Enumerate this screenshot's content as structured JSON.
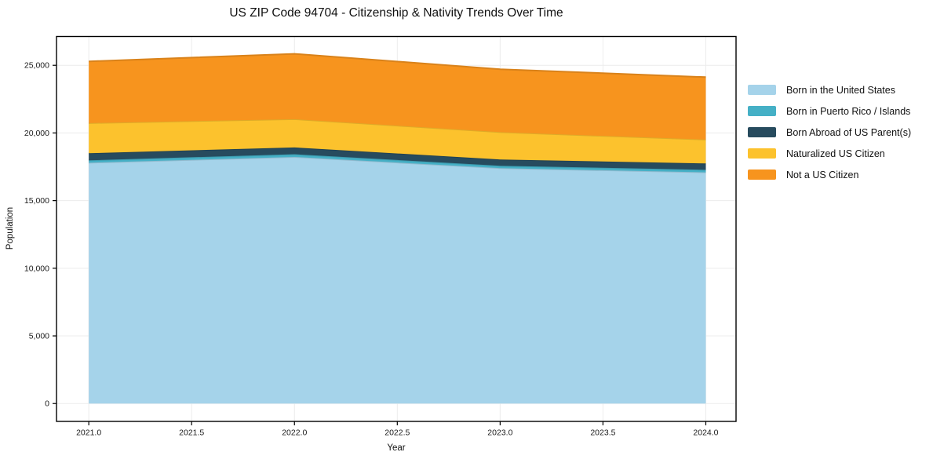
{
  "title": "US ZIP Code 94704 - Citizenship & Nativity Trends Over Time",
  "chart_data": {
    "type": "area",
    "stacked": true,
    "title": "US ZIP Code 94704 - Citizenship & Nativity Trends Over Time",
    "xlabel": "Year",
    "ylabel": "Population",
    "x": [
      2021,
      2022,
      2023,
      2024
    ],
    "series": [
      {
        "name": "Born in the United States",
        "color": "#a5d3ea",
        "values": [
          17800,
          18230,
          17400,
          17090
        ]
      },
      {
        "name": "Born in Puerto Rico / Islands",
        "color": "#45b0c6",
        "values": [
          180,
          200,
          175,
          190
        ]
      },
      {
        "name": "Born Abroad of US Parent(s)",
        "color": "#274b5e",
        "values": [
          520,
          500,
          465,
          465
        ]
      },
      {
        "name": "Naturalized US Citizen",
        "color": "#fcc22d",
        "values": [
          2230,
          2090,
          2020,
          1765
        ]
      },
      {
        "name": "Not a US Citizen",
        "color": "#f7941e",
        "values": [
          4560,
          4830,
          4650,
          4615
        ]
      }
    ],
    "stacked_totals": [
      25290,
      25850,
      24710,
      24125
    ],
    "xlim": [
      2020.843,
      2024.147
    ],
    "ylim": [
      -1320,
      27130
    ],
    "xticks": {
      "values": [
        2021.0,
        2021.5,
        2022.0,
        2022.5,
        2023.0,
        2023.5,
        2024.0
      ],
      "labels": [
        "2021.0",
        "2021.5",
        "2022.0",
        "2022.5",
        "2023.0",
        "2023.5",
        "2024.0"
      ]
    },
    "yticks": {
      "values": [
        0,
        5000,
        10000,
        15000,
        20000,
        25000
      ],
      "labels": [
        "0",
        "5,000",
        "10,000",
        "15,000",
        "20,000",
        "25,000"
      ]
    },
    "grid": true,
    "legend_position": "right"
  },
  "colors": {
    "background": "#ffffff",
    "frame": "#000000",
    "grid": "#ececec",
    "text": "#111111"
  }
}
